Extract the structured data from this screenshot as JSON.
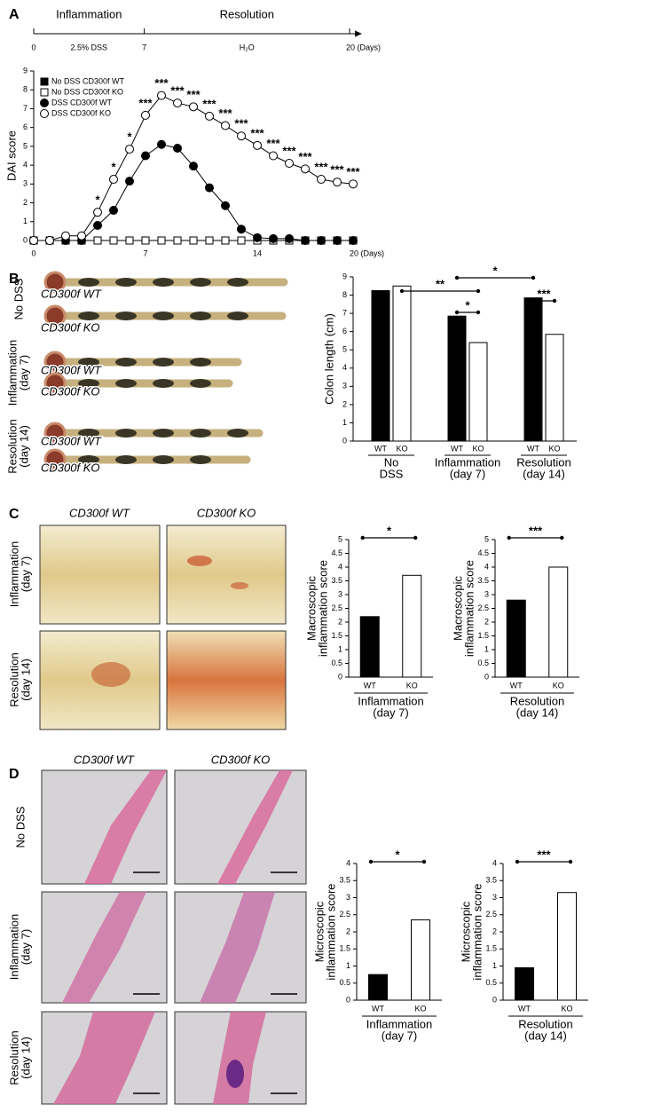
{
  "timeline": {
    "letter": "A",
    "phases": [
      "Inflammation",
      "Resolution"
    ],
    "treatments": [
      "2.5% DSS",
      "H₂O"
    ],
    "ticks": [
      0,
      7,
      {
        "value": 20,
        "label": "20 (Days)"
      }
    ]
  },
  "panel_b": {
    "letter": "B",
    "conditions": [
      "No DSS",
      "Inflammation (day 7)",
      "Resolution (day 14)"
    ],
    "genotypes": [
      "CD300f WT",
      "CD300f KO"
    ]
  },
  "panel_c": {
    "letter": "C",
    "genotypes": [
      "CD300f WT",
      "CD300f KO"
    ],
    "conditions": [
      "Inflammation (day 7)",
      "Resolution (day 14)"
    ]
  },
  "panel_d": {
    "letter": "D",
    "genotypes": [
      "CD300f WT",
      "CD300f KO"
    ],
    "conditions": [
      "No DSS",
      "Inflammation (day 7)",
      "Resolution (day 14)"
    ]
  },
  "chart_data": [
    {
      "type": "line",
      "ylabel": "DAI score",
      "x": [
        0,
        1,
        2,
        3,
        4,
        5,
        6,
        7,
        8,
        9,
        10,
        11,
        12,
        13,
        14,
        15,
        16,
        17,
        18,
        19,
        20
      ],
      "xlim": [
        0,
        20
      ],
      "xticks": [
        0,
        7,
        14,
        {
          "value": 20,
          "label": "20 (Days)"
        }
      ],
      "ylim": [
        0,
        9
      ],
      "yticks": [
        0,
        1,
        2,
        3,
        4,
        5,
        6,
        7,
        8,
        9
      ],
      "legend": "upper left",
      "series": [
        {
          "name": "No DSS CD300f WT",
          "color": "#000000",
          "marker": "square",
          "values": [
            0,
            0,
            0,
            0,
            0,
            0,
            0,
            0,
            0,
            0,
            0,
            0,
            0,
            0,
            0,
            0,
            0,
            0,
            0,
            0,
            0
          ]
        },
        {
          "name": "No DSS CD300f KO",
          "color": "#ffffff",
          "marker": "square",
          "values": [
            0,
            0,
            0,
            0,
            0,
            0,
            0,
            0,
            0,
            0,
            0,
            0,
            0,
            0,
            0,
            0,
            0,
            0,
            0,
            0,
            0
          ]
        },
        {
          "name": "DSS CD300f WT",
          "color": "#000000",
          "marker": "circle",
          "values": [
            0,
            0,
            0,
            0,
            0.8,
            1.6,
            3.15,
            4.5,
            5.1,
            4.9,
            3.95,
            2.8,
            1.85,
            0.6,
            0.15,
            0.1,
            0.1,
            0,
            0,
            0,
            0
          ]
        },
        {
          "name": "DSS CD300f KO",
          "color": "#ffffff",
          "marker": "circle",
          "values": [
            0,
            0,
            0.25,
            0.25,
            1.5,
            3.25,
            4.85,
            6.65,
            7.7,
            7.3,
            7.1,
            6.6,
            6.1,
            5.55,
            5.05,
            4.5,
            4.1,
            3.8,
            3.25,
            3.1,
            3.0
          ]
        }
      ],
      "annotations": [
        null,
        null,
        null,
        null,
        "*",
        "*",
        "*",
        "***",
        "***",
        "***",
        "***",
        "***",
        "***",
        "***",
        "***",
        "***",
        "***",
        "***",
        "***",
        "***",
        "***"
      ]
    },
    {
      "type": "bar",
      "ylabel": "Colon length (cm)",
      "categories": [
        "No DSS",
        "Inflammation (day 7)",
        "Resolution (day 14)"
      ],
      "series": [
        {
          "name": "WT",
          "color": "#000000",
          "values": [
            8.25,
            6.85,
            7.85
          ]
        },
        {
          "name": "KO",
          "color": "#ffffff",
          "values": [
            8.5,
            5.4,
            5.85
          ]
        }
      ],
      "ylim": [
        0,
        9
      ],
      "yticks": [
        0,
        1,
        2,
        3,
        4,
        5,
        6,
        7,
        8,
        9
      ],
      "annotations": [
        "*",
        "**",
        "*",
        "***"
      ]
    },
    {
      "type": "bar",
      "ylabel": "Macroscopic inflammation score",
      "xlabel": "Inflammation (day 7)",
      "categories": [
        "WT",
        "KO"
      ],
      "colors": [
        "#000000",
        "#ffffff"
      ],
      "values": [
        2.2,
        3.7
      ],
      "ylim": [
        0,
        5
      ],
      "yticks": [
        0,
        0.5,
        1,
        1.5,
        2,
        2.5,
        3,
        3.5,
        4,
        4.5,
        5
      ],
      "annotations": [
        "*"
      ]
    },
    {
      "type": "bar",
      "ylabel": "Macroscopic inflammation score",
      "xlabel": "Resolution (day 14)",
      "categories": [
        "WT",
        "KO"
      ],
      "colors": [
        "#000000",
        "#ffffff"
      ],
      "values": [
        2.8,
        4.0
      ],
      "ylim": [
        0,
        5
      ],
      "yticks": [
        0,
        0.5,
        1,
        1.5,
        2,
        2.5,
        3,
        3.5,
        4,
        4.5,
        5
      ],
      "annotations": [
        "***"
      ]
    },
    {
      "type": "bar",
      "ylabel": "Microscopic inflammation score",
      "xlabel": "Inflammation (day 7)",
      "categories": [
        "WT",
        "KO"
      ],
      "colors": [
        "#000000",
        "#ffffff"
      ],
      "values": [
        0.75,
        2.35
      ],
      "ylim": [
        0,
        4
      ],
      "yticks": [
        0,
        0.5,
        1,
        1.5,
        2,
        2.5,
        3,
        3.5,
        4
      ],
      "annotations": [
        "*"
      ]
    },
    {
      "type": "bar",
      "ylabel": "Microscopic inflammation score",
      "xlabel": "Resolution (day 14)",
      "categories": [
        "WT",
        "KO"
      ],
      "colors": [
        "#000000",
        "#ffffff"
      ],
      "values": [
        0.95,
        3.15
      ],
      "ylim": [
        0,
        4
      ],
      "yticks": [
        0,
        0.5,
        1,
        1.5,
        2,
        2.5,
        3,
        3.5,
        4
      ],
      "annotations": [
        "***"
      ]
    }
  ]
}
